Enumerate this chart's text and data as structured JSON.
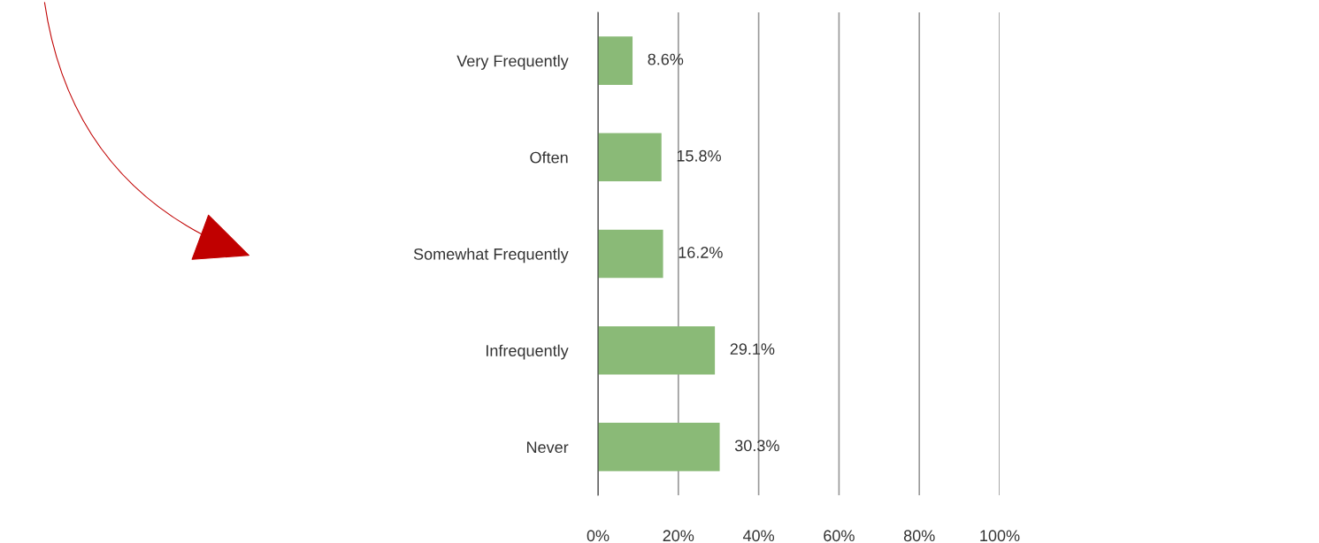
{
  "chart_data": {
    "type": "bar",
    "orientation": "horizontal",
    "categories": [
      "Very Frequently",
      "Often",
      "Somewhat Frequently",
      "Infrequently",
      "Never"
    ],
    "values": [
      8.6,
      15.8,
      16.2,
      29.1,
      30.3
    ],
    "value_labels": [
      "8.6%",
      "15.8%",
      "16.2%",
      "29.1%",
      "30.3%"
    ],
    "color": "#8aba77",
    "xlim": [
      0,
      100
    ],
    "xticks": [
      {
        "value": 0,
        "label": "0%"
      },
      {
        "value": 20,
        "label": "20%"
      },
      {
        "value": 40,
        "label": "40%"
      },
      {
        "value": 60,
        "label": "60%"
      },
      {
        "value": 80,
        "label": "80%"
      },
      {
        "value": 100,
        "label": "100%"
      }
    ],
    "grid": "x",
    "legend": false
  }
}
